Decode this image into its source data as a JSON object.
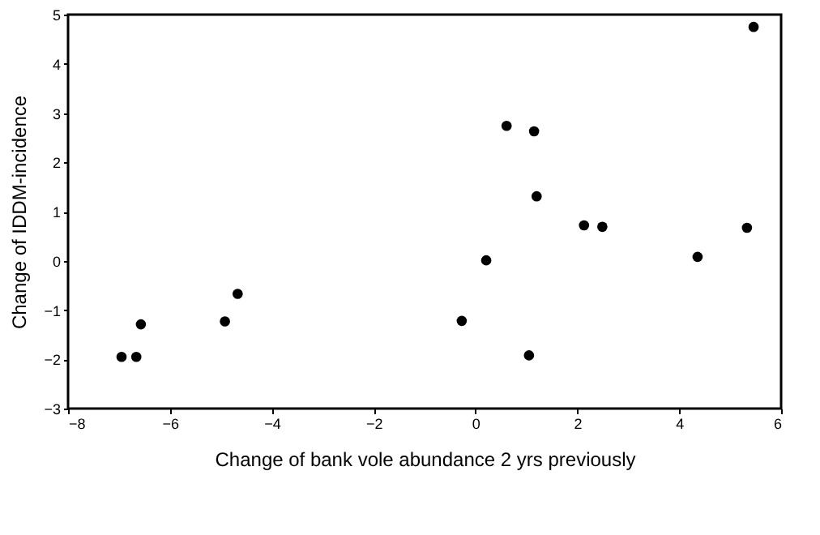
{
  "chart_data": {
    "type": "scatter",
    "xlabel": "Change of bank vole abundance 2 yrs previously",
    "ylabel": "Change of IDDM-incidence",
    "x": [
      -6.95,
      -6.66,
      -6.57,
      -4.92,
      -4.67,
      -0.27,
      0.21,
      0.61,
      1.05,
      1.15,
      1.2,
      2.13,
      2.49,
      4.36,
      5.33,
      5.46
    ],
    "values": [
      -1.95,
      -1.95,
      -1.29,
      -1.23,
      -0.67,
      -1.22,
      0.01,
      2.74,
      -1.92,
      2.63,
      1.31,
      0.72,
      0.69,
      0.08,
      0.67,
      4.75
    ],
    "color": "#000000",
    "marker": "circle",
    "xlim": [
      -8,
      6
    ],
    "xticks": [
      -8,
      -6,
      -4,
      -2,
      0,
      2,
      4,
      6
    ],
    "ylim": [
      -3,
      5
    ],
    "yticks": [
      -3,
      -2,
      -1,
      0,
      1,
      2,
      3,
      4,
      5
    ],
    "grid": false
  }
}
